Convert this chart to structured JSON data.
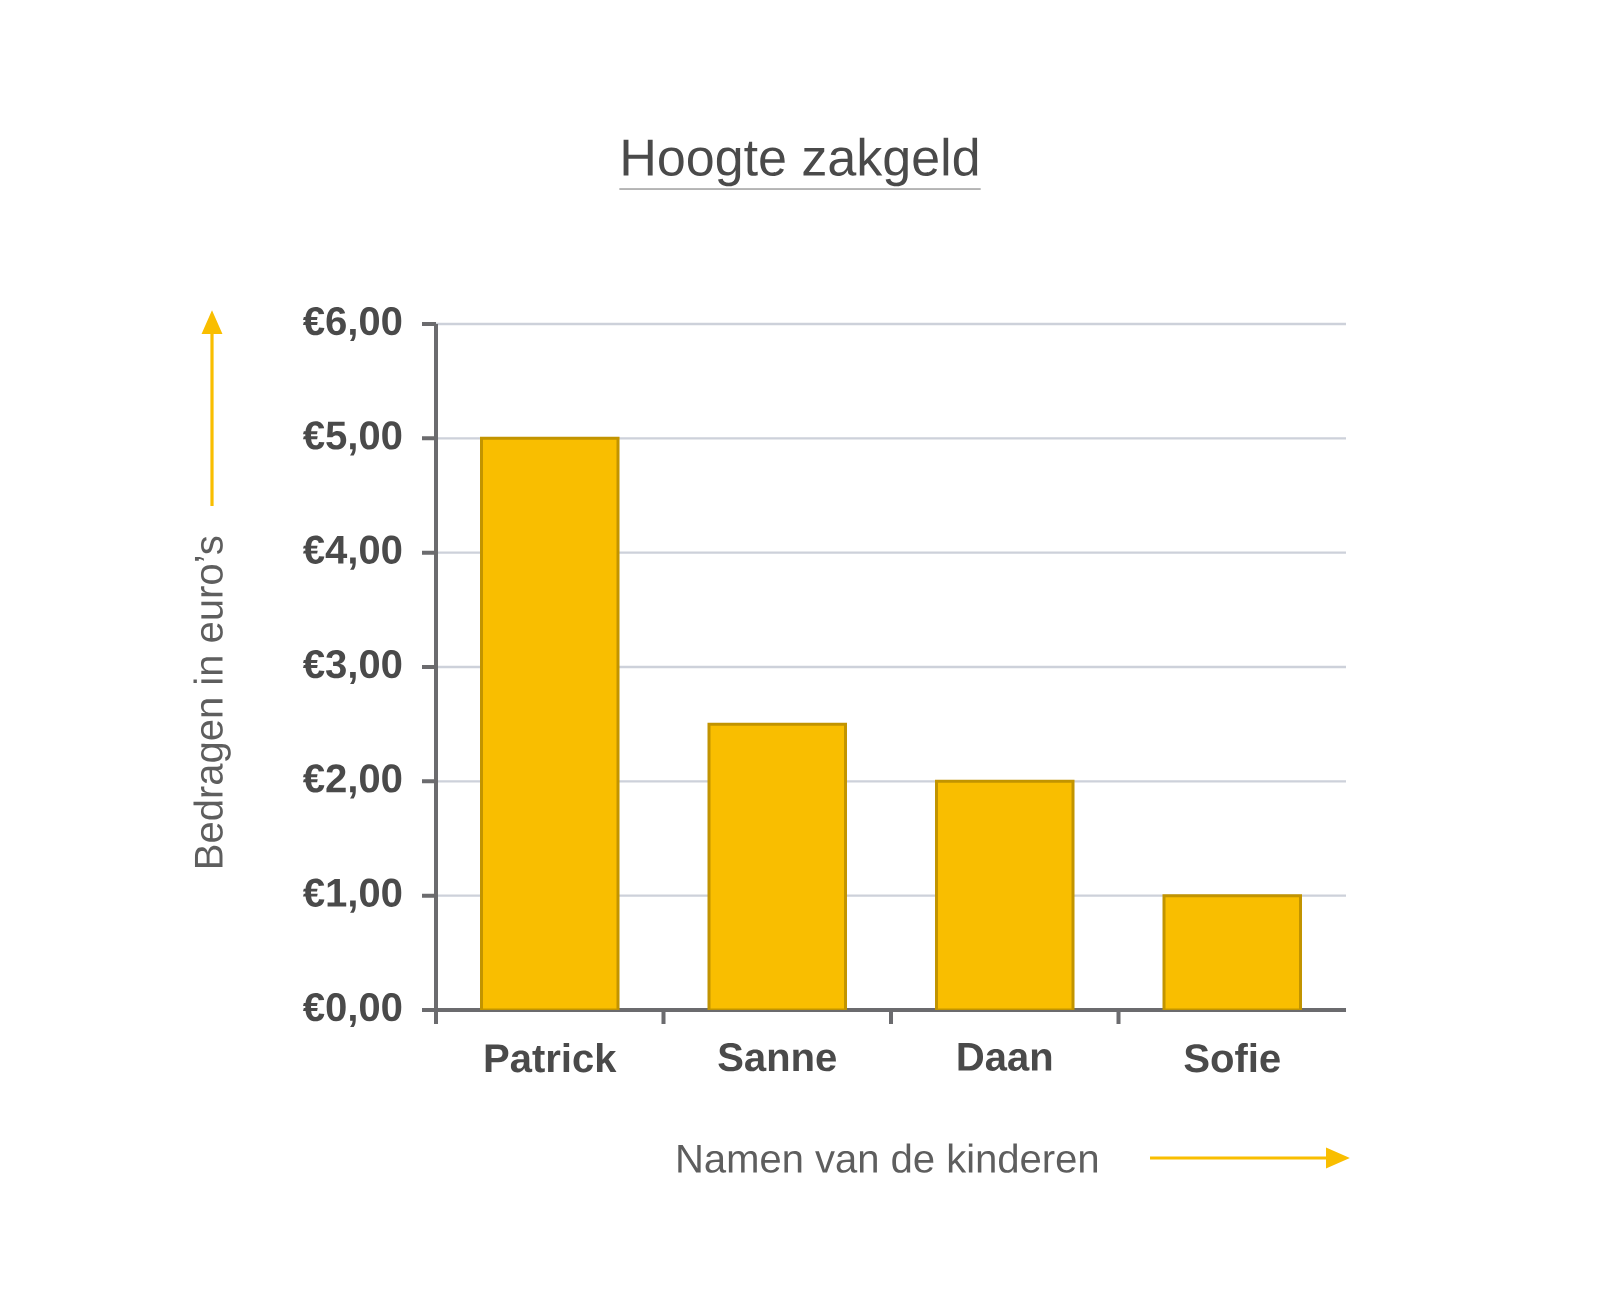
{
  "chart_data": {
    "type": "bar",
    "title": "Hoogte zakgeld",
    "xlabel": "Namen van de kinderen",
    "ylabel": "Bedragen in euro’s",
    "categories": [
      "Patrick",
      "Sanne",
      "Daan",
      "Sofie"
    ],
    "values": [
      5,
      2.5,
      2,
      1
    ],
    "color": "#f9be00",
    "ylim": [
      0,
      6
    ],
    "yticks": [
      {
        "value": 0,
        "label": "€0,00"
      },
      {
        "value": 1,
        "label": "€1,00"
      },
      {
        "value": 2,
        "label": "€2,00"
      },
      {
        "value": 3,
        "label": "€3,00"
      },
      {
        "value": 4,
        "label": "€4,00"
      },
      {
        "value": 5,
        "label": "€5,00"
      },
      {
        "value": 6,
        "label": "€6,00"
      }
    ],
    "grid": "y"
  }
}
